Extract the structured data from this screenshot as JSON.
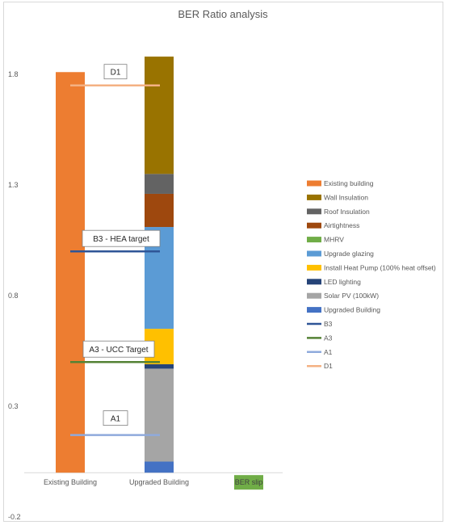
{
  "chart_data": {
    "type": "bar",
    "stacked": true,
    "title": "BER Ratio analysis",
    "categories": [
      "Existing Building",
      "Upgraded Building",
      "BER slip"
    ],
    "ylim": [
      -0.2,
      1.9
    ],
    "yticks": [
      -0.2,
      0.3,
      0.8,
      1.3,
      1.8
    ],
    "ytick_labels": [
      "-0.2",
      "0.3",
      "0.8",
      "1.3",
      "1.8"
    ],
    "grid": false,
    "legend_position": "right",
    "series": [
      {
        "name": "Existing building",
        "color": "#ED7D31",
        "values": [
          1.81,
          0,
          0
        ]
      },
      {
        "name": "Upgraded Building",
        "color": "#4472C4",
        "values": [
          0,
          0.05,
          0
        ]
      },
      {
        "name": "Solar PV (100kW)",
        "color": "#A5A5A5",
        "values": [
          0,
          0.42,
          0
        ]
      },
      {
        "name": "LED lighting",
        "color": "#264478",
        "values": [
          0,
          0.02,
          0
        ]
      },
      {
        "name": "Install Heat Pump (100% heat offset)",
        "color": "#FFC000",
        "values": [
          0,
          0.16,
          0
        ]
      },
      {
        "name": "Upgrade glazing",
        "color": "#5B9BD5",
        "values": [
          0,
          0.46,
          0
        ]
      },
      {
        "name": "MHRV",
        "color": "#70AD47",
        "values": [
          0,
          0,
          0
        ]
      },
      {
        "name": "Airtightness",
        "color": "#9E480E",
        "values": [
          0,
          0.15,
          0
        ]
      },
      {
        "name": "Roof Insulation",
        "color": "#636363",
        "values": [
          0,
          0.09,
          0
        ]
      },
      {
        "name": "Wall Insulation",
        "color": "#997300",
        "values": [
          0,
          0.53,
          0
        ]
      }
    ],
    "reference_lines": [
      {
        "name": "D1",
        "value": 1.75,
        "color": "#F4B183",
        "label": "D1"
      },
      {
        "name": "B3",
        "value": 1.0,
        "color": "#2F5597",
        "label": "B3 - HEA target"
      },
      {
        "name": "A3",
        "value": 0.5,
        "color": "#548235",
        "label": "A3 - UCC Target"
      },
      {
        "name": "A1",
        "value": 0.17,
        "color": "#8FAADC",
        "label": "A1"
      }
    ],
    "legend": [
      {
        "label": "Existing building",
        "color": "#ED7D31",
        "marker": "box"
      },
      {
        "label": "Wall Insulation",
        "color": "#997300",
        "marker": "box"
      },
      {
        "label": "Roof Insulation",
        "color": "#636363",
        "marker": "box"
      },
      {
        "label": "Airtightness",
        "color": "#9E480E",
        "marker": "box"
      },
      {
        "label": "MHRV",
        "color": "#70AD47",
        "marker": "box"
      },
      {
        "label": "Upgrade glazing",
        "color": "#5B9BD5",
        "marker": "box"
      },
      {
        "label": "Install Heat Pump (100% heat offset)",
        "color": "#FFC000",
        "marker": "box"
      },
      {
        "label": "LED lighting",
        "color": "#264478",
        "marker": "box"
      },
      {
        "label": "Solar PV (100kW)",
        "color": "#A5A5A5",
        "marker": "box"
      },
      {
        "label": "Upgraded Building",
        "color": "#4472C4",
        "marker": "box"
      },
      {
        "label": "B3",
        "color": "#2F5597",
        "marker": "line"
      },
      {
        "label": "A3",
        "color": "#548235",
        "marker": "line"
      },
      {
        "label": "A1",
        "color": "#8FAADC",
        "marker": "line"
      },
      {
        "label": "D1",
        "color": "#F4B183",
        "marker": "line"
      }
    ],
    "slip_badge": {
      "label": "BER slip",
      "color": "#70AD47"
    }
  }
}
